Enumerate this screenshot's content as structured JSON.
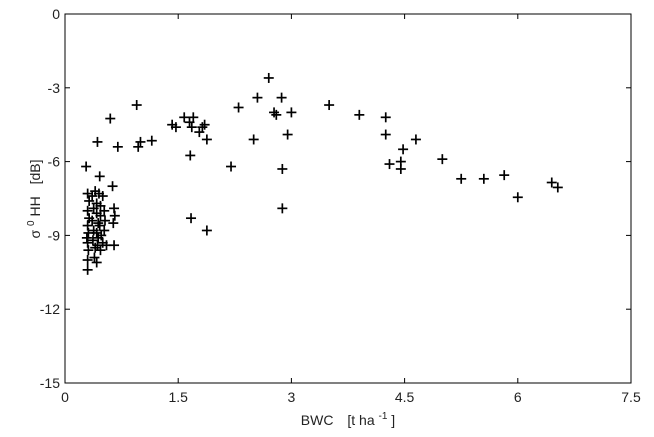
{
  "chart_data": {
    "type": "scatter",
    "title": "",
    "xlabel": {
      "text": "BWC",
      "unit_prefix": "[t ha",
      "unit_sup": "-1",
      "unit_suffix": "]"
    },
    "ylabel": {
      "symbol": "σ",
      "sup": "0",
      "rest": " HH",
      "unit": "[dB]"
    },
    "xlim": [
      0,
      7.5
    ],
    "ylim": [
      -15,
      0
    ],
    "xticks": [
      0,
      1.5,
      3,
      4.5,
      6,
      7.5
    ],
    "xtick_labels": [
      "0",
      "1.5",
      "3",
      "4.5",
      "6",
      "7.5"
    ],
    "yticks": [
      0,
      -3,
      -6,
      -9,
      -12,
      -15
    ],
    "ytick_labels": [
      "0",
      "-3",
      "-6",
      "-9",
      "-12",
      "-15"
    ],
    "grid": false,
    "legend": "none",
    "marker": "plus",
    "color": "#000000",
    "points": [
      [
        0.28,
        -6.2
      ],
      [
        0.3,
        -7.3
      ],
      [
        0.32,
        -7.6
      ],
      [
        0.3,
        -8.0
      ],
      [
        0.32,
        -8.3
      ],
      [
        0.3,
        -8.6
      ],
      [
        0.31,
        -8.9
      ],
      [
        0.29,
        -9.1
      ],
      [
        0.3,
        -9.3
      ],
      [
        0.31,
        -9.6
      ],
      [
        0.3,
        -10.0
      ],
      [
        0.3,
        -10.4
      ],
      [
        0.36,
        -7.4
      ],
      [
        0.38,
        -7.9
      ],
      [
        0.36,
        -8.4
      ],
      [
        0.38,
        -8.8
      ],
      [
        0.37,
        -9.2
      ],
      [
        0.4,
        -9.5
      ],
      [
        0.39,
        -9.9
      ],
      [
        0.42,
        -10.1
      ],
      [
        0.4,
        -7.2
      ],
      [
        0.42,
        -7.7
      ],
      [
        0.42,
        -8.1
      ],
      [
        0.44,
        -8.5
      ],
      [
        0.42,
        -8.9
      ],
      [
        0.44,
        -9.1
      ],
      [
        0.43,
        -9.4
      ],
      [
        0.45,
        -7.3
      ],
      [
        0.47,
        -7.8
      ],
      [
        0.47,
        -8.2
      ],
      [
        0.46,
        -8.6
      ],
      [
        0.48,
        -9.0
      ],
      [
        0.5,
        -9.3
      ],
      [
        0.47,
        -9.6
      ],
      [
        0.43,
        -5.2
      ],
      [
        0.46,
        -6.6
      ],
      [
        0.5,
        -7.4
      ],
      [
        0.52,
        -8.0
      ],
      [
        0.53,
        -8.4
      ],
      [
        0.52,
        -8.8
      ],
      [
        0.55,
        -9.4
      ],
      [
        0.6,
        -4.25
      ],
      [
        0.63,
        -7.0
      ],
      [
        0.65,
        -7.9
      ],
      [
        0.66,
        -8.2
      ],
      [
        0.64,
        -8.5
      ],
      [
        0.65,
        -9.4
      ],
      [
        0.7,
        -5.4
      ],
      [
        0.95,
        -3.7
      ],
      [
        0.97,
        -5.4
      ],
      [
        1.0,
        -5.2
      ],
      [
        1.15,
        -5.15
      ],
      [
        1.42,
        -4.5
      ],
      [
        1.47,
        -4.6
      ],
      [
        1.58,
        -4.2
      ],
      [
        1.65,
        -4.4
      ],
      [
        1.7,
        -4.2
      ],
      [
        1.68,
        -4.6
      ],
      [
        1.66,
        -5.75
      ],
      [
        1.67,
        -8.3
      ],
      [
        1.78,
        -4.8
      ],
      [
        1.82,
        -4.6
      ],
      [
        1.85,
        -4.5
      ],
      [
        1.88,
        -5.1
      ],
      [
        1.88,
        -8.8
      ],
      [
        2.2,
        -6.2
      ],
      [
        2.3,
        -3.8
      ],
      [
        2.5,
        -5.1
      ],
      [
        2.55,
        -3.4
      ],
      [
        2.7,
        -2.6
      ],
      [
        2.77,
        -4.0
      ],
      [
        2.8,
        -4.1
      ],
      [
        2.87,
        -3.4
      ],
      [
        2.88,
        -6.3
      ],
      [
        2.88,
        -7.9
      ],
      [
        2.95,
        -4.9
      ],
      [
        3.0,
        -4.0
      ],
      [
        3.5,
        -3.7
      ],
      [
        3.9,
        -4.1
      ],
      [
        4.25,
        -4.2
      ],
      [
        4.25,
        -4.9
      ],
      [
        4.3,
        -6.1
      ],
      [
        4.48,
        -5.5
      ],
      [
        4.45,
        -6.0
      ],
      [
        4.45,
        -6.3
      ],
      [
        4.65,
        -5.1
      ],
      [
        5.0,
        -5.9
      ],
      [
        5.25,
        -6.7
      ],
      [
        5.55,
        -6.7
      ],
      [
        5.82,
        -6.55
      ],
      [
        6.0,
        -7.45
      ],
      [
        6.45,
        -6.85
      ],
      [
        6.53,
        -7.05
      ]
    ]
  }
}
